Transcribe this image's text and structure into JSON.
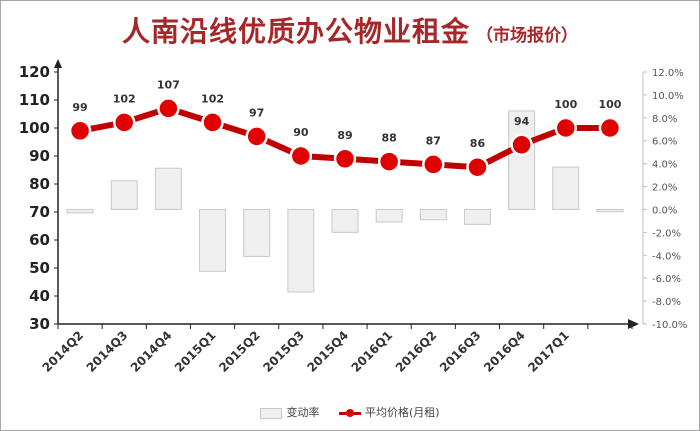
{
  "chart_data": {
    "type": "bar+line",
    "title": "人南沿线优质办公物业租金",
    "subtitle": "（市场报价）",
    "categories": [
      "2014Q2",
      "2014Q3",
      "2014Q4",
      "2015Q1",
      "2015Q2",
      "2015Q3",
      "2015Q4",
      "2016Q1",
      "2016Q2",
      "2016Q3",
      "2016Q4",
      "2017Q1",
      ""
    ],
    "series": [
      {
        "name": "变动率",
        "type": "bar",
        "axis": "right",
        "values_percent": [
          -0.3,
          2.5,
          3.6,
          -5.4,
          -4.1,
          -7.2,
          -2.0,
          -1.1,
          -0.9,
          -1.3,
          8.6,
          3.7,
          -0.2
        ]
      },
      {
        "name": "平均价格(月租)",
        "type": "line",
        "axis": "left",
        "values": [
          99,
          102,
          107,
          102,
          97,
          90,
          89,
          88,
          87,
          86,
          94,
          100,
          100
        ],
        "data_labels": [
          "99",
          "102",
          "107",
          "102",
          "97",
          "90",
          "89",
          "88",
          "87",
          "86",
          "94",
          "100",
          "100"
        ]
      }
    ],
    "y_left": {
      "min": 30,
      "max": 120,
      "step": 10,
      "ticks": [
        "30",
        "40",
        "50",
        "60",
        "70",
        "80",
        "90",
        "100",
        "110",
        "120"
      ]
    },
    "y_right": {
      "min": -10,
      "max": 12,
      "step": 2,
      "ticks": [
        "-10.0%",
        "-8.0%",
        "-6.0%",
        "-4.0%",
        "-2.0%",
        "0.0%",
        "2.0%",
        "4.0%",
        "6.0%",
        "8.0%",
        "10.0%",
        "12.0%"
      ]
    },
    "grid": false,
    "legend_position": "bottom",
    "colors": {
      "title": "#a5272a",
      "line": "#c00000",
      "marker": "#e00000",
      "bar_fill": "#efefef",
      "bar_stroke": "#c8c8c8"
    }
  },
  "legend": {
    "bar_label": "变动率",
    "line_label": "平均价格(月租)"
  }
}
